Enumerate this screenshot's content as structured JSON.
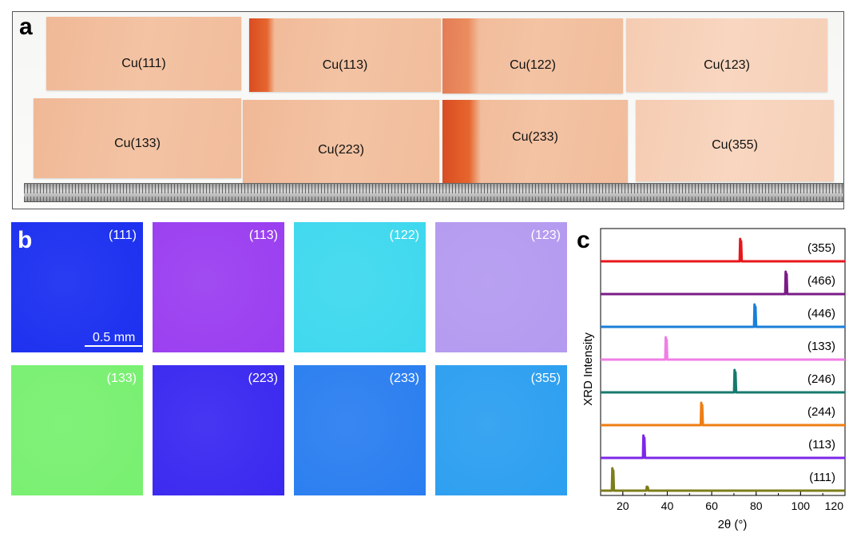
{
  "panel_a": {
    "letter": "a",
    "samples_top": [
      "Cu(111)",
      "Cu(113)",
      "Cu(122)",
      "Cu(123)"
    ],
    "samples_bottom": [
      "Cu(133)",
      "Cu(223)",
      "Cu(233)",
      "Cu(355)"
    ]
  },
  "panel_b": {
    "letter": "b",
    "tiles": [
      {
        "label": "(111)",
        "color": "#1b2ff0"
      },
      {
        "label": "(113)",
        "color": "#9a3ef0"
      },
      {
        "label": "(122)",
        "color": "#3ed8ee"
      },
      {
        "label": "(123)",
        "color": "#b49af0"
      },
      {
        "label": "(133)",
        "color": "#78f070"
      },
      {
        "label": "(223)",
        "color": "#3a28f0"
      },
      {
        "label": "(233)",
        "color": "#2a7ef0"
      },
      {
        "label": "(355)",
        "color": "#2c9ff0"
      }
    ],
    "scalebar": "0.5 mm"
  },
  "chart_data": {
    "type": "line",
    "title": "",
    "panel_letter": "c",
    "xlabel": "2θ (°)",
    "ylabel": "XRD Intensity",
    "xlim": [
      10,
      120
    ],
    "xticks": [
      "20",
      "40",
      "60",
      "80",
      "100",
      "120"
    ],
    "grid": false,
    "legend": "none",
    "series": [
      {
        "name": "(355)",
        "color": "#e8161b",
        "peaks": [
          73.0
        ]
      },
      {
        "name": "(466)",
        "color": "#7a1b87",
        "peaks": [
          93.5
        ]
      },
      {
        "name": "(446)",
        "color": "#1a7fd8",
        "peaks": [
          79.5
        ]
      },
      {
        "name": "(133)",
        "color": "#f07ee4",
        "peaks": [
          39.5
        ]
      },
      {
        "name": "(246)",
        "color": "#177a6e",
        "peaks": [
          70.5
        ]
      },
      {
        "name": "(244)",
        "color": "#ee7e14",
        "peaks": [
          55.5
        ]
      },
      {
        "name": "(113)",
        "color": "#7d27e8",
        "peaks": [
          29.5
        ]
      },
      {
        "name": "(111)",
        "color": "#7d7d1a",
        "peaks": [
          15.5,
          31.0
        ]
      }
    ]
  }
}
